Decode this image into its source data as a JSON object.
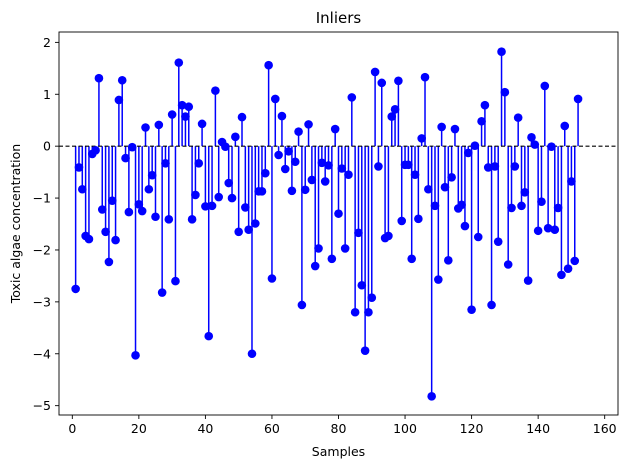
{
  "chart_data": {
    "type": "stem",
    "title": "Inliers",
    "xlabel": "Samples",
    "ylabel": "Toxic algae concentration",
    "xlim": [
      -4,
      164
    ],
    "ylim": [
      -5.18,
      2.2
    ],
    "xticks": [
      0,
      20,
      40,
      60,
      80,
      100,
      120,
      140,
      160
    ],
    "yticks": [
      -5,
      -4,
      -3,
      -2,
      -1,
      0,
      1,
      2
    ],
    "baseline": 0,
    "baseline_style": "dashed",
    "color": "#0000ff",
    "x": [
      1,
      2,
      3,
      4,
      5,
      6,
      7,
      8,
      9,
      10,
      11,
      12,
      13,
      14,
      15,
      16,
      17,
      18,
      19,
      20,
      21,
      22,
      23,
      24,
      25,
      26,
      27,
      28,
      29,
      30,
      31,
      32,
      33,
      34,
      35,
      36,
      37,
      38,
      39,
      40,
      41,
      42,
      43,
      44,
      45,
      46,
      47,
      48,
      49,
      50,
      51,
      52,
      53,
      54,
      55,
      56,
      57,
      58,
      59,
      60,
      61,
      62,
      63,
      64,
      65,
      66,
      67,
      68,
      69,
      70,
      71,
      72,
      73,
      74,
      75,
      76,
      77,
      78,
      79,
      80,
      81,
      82,
      83,
      84,
      85,
      86,
      87,
      88,
      89,
      90,
      91,
      92,
      93,
      94,
      95,
      96,
      97,
      98,
      99,
      100,
      101,
      102,
      103,
      104,
      105,
      106,
      107,
      108,
      109,
      110,
      111,
      112,
      113,
      114,
      115,
      116,
      117,
      118,
      119,
      120,
      121,
      122,
      123,
      124,
      125,
      126,
      127,
      128,
      129,
      130,
      131,
      132,
      133,
      134,
      135,
      136,
      137,
      138,
      139,
      140,
      141,
      142,
      143,
      144,
      145,
      146,
      147,
      148,
      149,
      150,
      151,
      152
    ],
    "y": [
      -2.75,
      -0.41,
      -0.83,
      -1.73,
      -1.79,
      -0.15,
      -0.08,
      1.31,
      -1.22,
      -1.65,
      -2.23,
      -1.05,
      -1.81,
      0.89,
      1.27,
      -0.23,
      -1.27,
      -0.02,
      -4.03,
      -1.12,
      -1.25,
      0.36,
      -0.83,
      -0.56,
      -1.36,
      0.41,
      -2.82,
      -0.33,
      -1.41,
      0.61,
      -2.6,
      1.61,
      0.79,
      0.57,
      0.76,
      -1.41,
      -0.94,
      -0.33,
      0.43,
      -1.16,
      -3.66,
      -1.15,
      1.07,
      -0.98,
      0.08,
      -0.01,
      -0.71,
      -1.0,
      0.18,
      -1.65,
      0.56,
      -1.18,
      -1.61,
      -4.0,
      -1.49,
      -0.87,
      -0.87,
      -0.52,
      1.56,
      -2.55,
      0.91,
      -0.17,
      0.58,
      -0.44,
      -0.1,
      -0.86,
      -0.3,
      0.28,
      -3.06,
      -0.84,
      0.42,
      -0.65,
      -2.31,
      -1.97,
      -0.32,
      -0.68,
      -0.37,
      -2.17,
      0.33,
      -1.3,
      -0.43,
      -1.97,
      -0.55,
      0.94,
      -3.2,
      -1.67,
      -2.68,
      -3.94,
      -3.2,
      -2.92,
      1.43,
      -0.39,
      1.22,
      -1.77,
      -1.73,
      0.57,
      0.71,
      1.26,
      -1.44,
      -0.36,
      -0.36,
      -2.17,
      -0.55,
      -1.4,
      0.15,
      1.33,
      -0.83,
      -4.82,
      -1.15,
      -2.57,
      0.37,
      -0.79,
      -2.2,
      -0.6,
      0.33,
      -1.2,
      -1.13,
      -1.54,
      -0.13,
      -3.15,
      0.01,
      -1.75,
      0.48,
      0.79,
      -0.41,
      -3.06,
      -0.39,
      -1.84,
      1.82,
      1.04,
      -2.28,
      -1.19,
      -0.39,
      0.55,
      -1.15,
      -0.89,
      -2.59,
      0.17,
      0.03,
      -1.63,
      -1.07,
      1.16,
      -1.58,
      -0.01,
      -1.61,
      -1.19,
      -2.48,
      0.39,
      -2.36,
      -0.68,
      -2.21,
      0.91
    ]
  }
}
